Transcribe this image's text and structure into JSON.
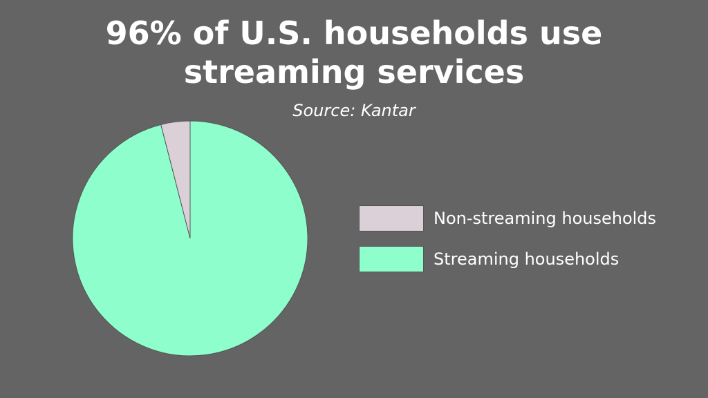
{
  "chart_data": {
    "type": "pie",
    "title": "96% of U.S. households use streaming services",
    "subtitle": "Source: Kantar",
    "slices": [
      {
        "label": "Streaming households",
        "value": 96,
        "color": "#8effcc"
      },
      {
        "label": "Non-streaming households",
        "value": 4,
        "color": "#dcd0d8"
      }
    ],
    "legend": [
      {
        "label": "Non-streaming households",
        "color": "#dcd0d8"
      },
      {
        "label": "Streaming households",
        "color": "#8effcc"
      }
    ],
    "legend_position": "right"
  }
}
